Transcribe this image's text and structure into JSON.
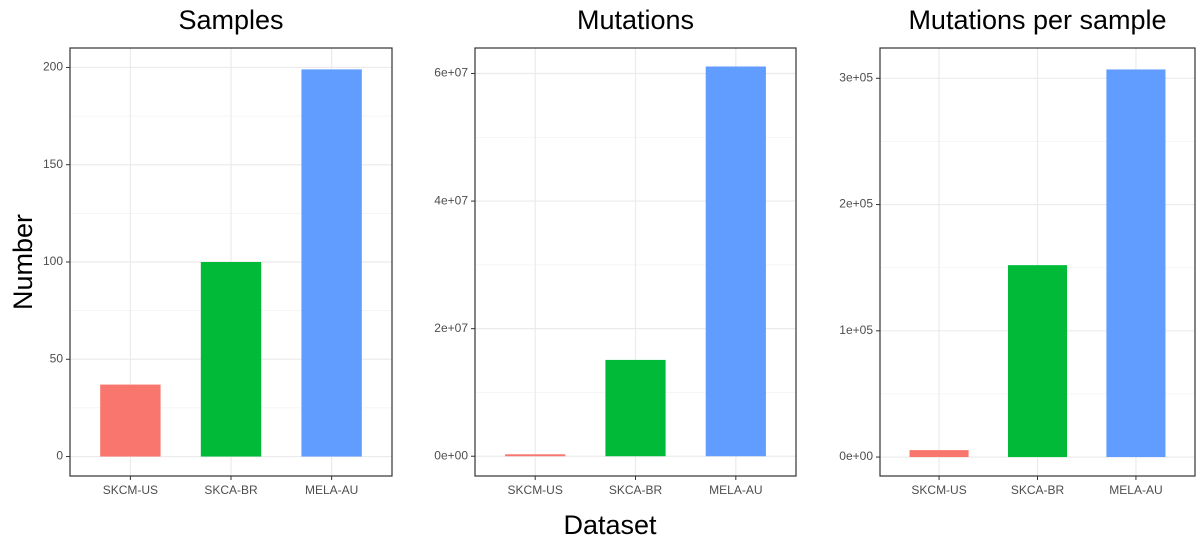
{
  "chart_data": [
    {
      "type": "bar",
      "title": "Samples",
      "ylabel": "Number",
      "categories": [
        "SKCM-US",
        "SKCA-BR",
        "MELA-AU"
      ],
      "values": [
        37,
        100,
        199
      ],
      "colors": [
        "#F8766D",
        "#00BA38",
        "#619CFF"
      ],
      "ylim": [
        -10,
        210
      ],
      "yticks": [
        0,
        50,
        100,
        150,
        200
      ],
      "grid": true
    },
    {
      "type": "bar",
      "title": "Mutations",
      "xlabel": "Dataset",
      "categories": [
        "SKCM-US",
        "SKCA-BR",
        "MELA-AU"
      ],
      "values": [
        300000,
        15100000,
        61100000
      ],
      "colors": [
        "#F8766D",
        "#00BA38",
        "#619CFF"
      ],
      "ylim": [
        -3100000,
        64000000
      ],
      "yticks": [
        {
          "value": 0,
          "label": "0e+00"
        },
        {
          "value": 20000000,
          "label": "2e+07"
        },
        {
          "value": 40000000,
          "label": "4e+07"
        },
        {
          "value": 60000000,
          "label": "6e+07"
        }
      ],
      "grid": true
    },
    {
      "type": "bar",
      "title": "Mutations per sample",
      "categories": [
        "SKCM-US",
        "SKCA-BR",
        "MELA-AU"
      ],
      "values": [
        5500,
        152000,
        307000
      ],
      "colors": [
        "#F8766D",
        "#00BA38",
        "#619CFF"
      ],
      "ylim": [
        -15000,
        324000
      ],
      "yticks": [
        {
          "value": 0,
          "label": "0e+00"
        },
        {
          "value": 100000,
          "label": "1e+05"
        },
        {
          "value": 200000,
          "label": "2e+05"
        },
        {
          "value": 300000,
          "label": "3e+05"
        }
      ],
      "grid": true
    }
  ]
}
